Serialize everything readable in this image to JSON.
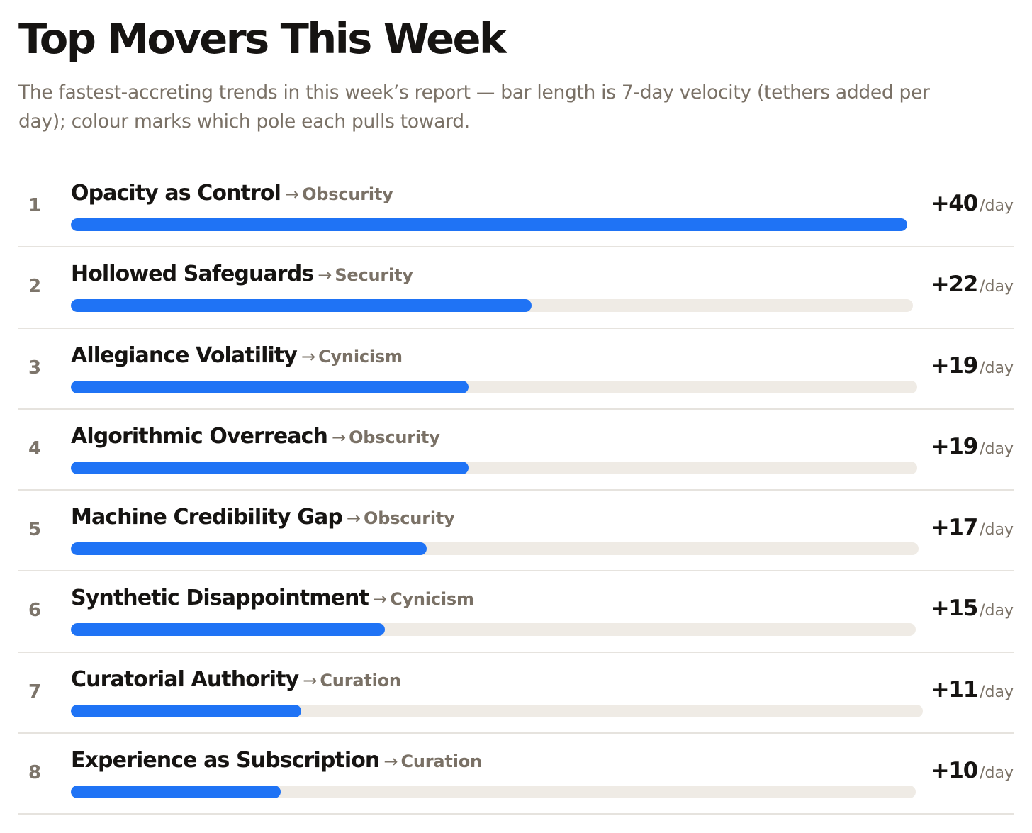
{
  "header": {
    "title": "Top Movers This Week",
    "subtitle": "The fastest-accreting trends in this week’s report — bar length is 7-day velocity (tethers added per day); colour marks which pole each pulls toward."
  },
  "colors": {
    "bar_fill": "#1f73f5",
    "bar_track": "#efebe5",
    "title": "#161412",
    "muted": "#7a7166",
    "divider": "#e6e3de"
  },
  "chart_data": {
    "type": "bar",
    "orientation": "horizontal",
    "unit": "/day",
    "arrow": "→",
    "max_value": 40,
    "rows": [
      {
        "rank": "1",
        "name": "Opacity as Control",
        "pole": "Obscurity",
        "value": 40,
        "value_label": "+40"
      },
      {
        "rank": "2",
        "name": "Hollowed Safeguards",
        "pole": "Security",
        "value": 22,
        "value_label": "+22"
      },
      {
        "rank": "3",
        "name": "Allegiance Volatility",
        "pole": "Cynicism",
        "value": 19,
        "value_label": "+19"
      },
      {
        "rank": "4",
        "name": "Algorithmic Overreach",
        "pole": "Obscurity",
        "value": 19,
        "value_label": "+19"
      },
      {
        "rank": "5",
        "name": "Machine Credibility Gap",
        "pole": "Obscurity",
        "value": 17,
        "value_label": "+17"
      },
      {
        "rank": "6",
        "name": "Synthetic Disappointment",
        "pole": "Cynicism",
        "value": 15,
        "value_label": "+15"
      },
      {
        "rank": "7",
        "name": "Curatorial Authority",
        "pole": "Curation",
        "value": 11,
        "value_label": "+11"
      },
      {
        "rank": "8",
        "name": "Experience as Subscription",
        "pole": "Curation",
        "value": 10,
        "value_label": "+10"
      }
    ]
  }
}
